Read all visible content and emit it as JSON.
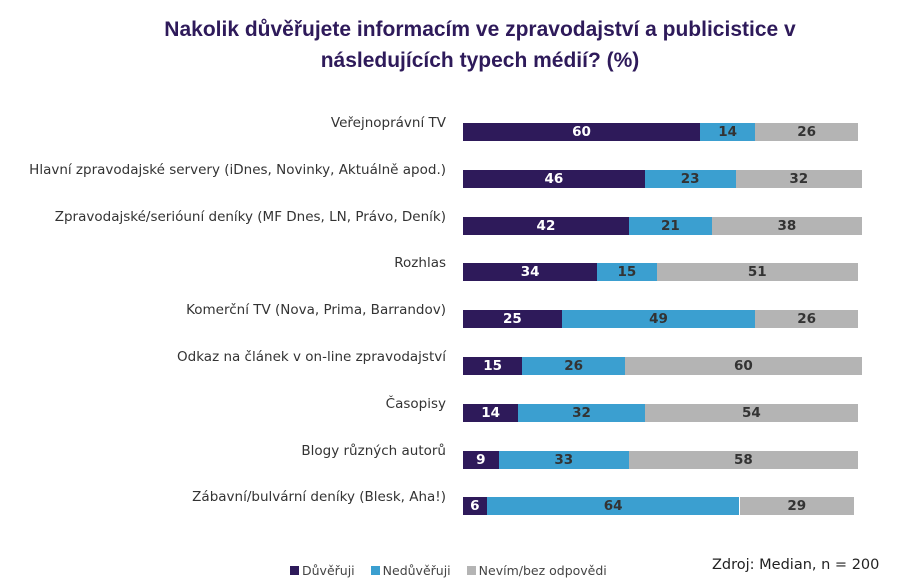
{
  "chart_data": {
    "type": "bar",
    "orientation": "horizontal",
    "stacked": true,
    "title": "Nakolik důvěřujete informacím ve zpravodajství a publicistice v následujících typech médií? (%)",
    "categories": [
      "Veřejnoprávní TV",
      "Hlavní zpravodajské servery (iDnes, Novinky, Aktuálně apod.)",
      "Zpravodajské/serióuní deníky (MF Dnes, LN, Právo, Deník)",
      "Rozhlas",
      "Komerční TV (Nova, Prima, Barrandov)",
      "Odkaz na článek v on-line zpravodajství",
      "Časopisy",
      "Blogy různých autorů",
      "Zábavní/bulvární deníky (Blesk, Aha!)"
    ],
    "series": [
      {
        "name": "Důvěřuji",
        "color": "#2e1a5a",
        "label_color": "#ffffff",
        "values": [
          60,
          46,
          42,
          34,
          25,
          15,
          14,
          9,
          6
        ]
      },
      {
        "name": "Nedůvěřuji",
        "color": "#3b9fd0",
        "label_color": "#333333",
        "values": [
          14,
          23,
          21,
          15,
          49,
          26,
          32,
          33,
          64
        ]
      },
      {
        "name": "Nevím/bez odpovědi",
        "color": "#b4b4b4",
        "label_color": "#333333",
        "values": [
          26,
          32,
          38,
          51,
          26,
          60,
          54,
          58,
          29
        ]
      }
    ],
    "source": "Zdroj: Median, n = 200"
  }
}
